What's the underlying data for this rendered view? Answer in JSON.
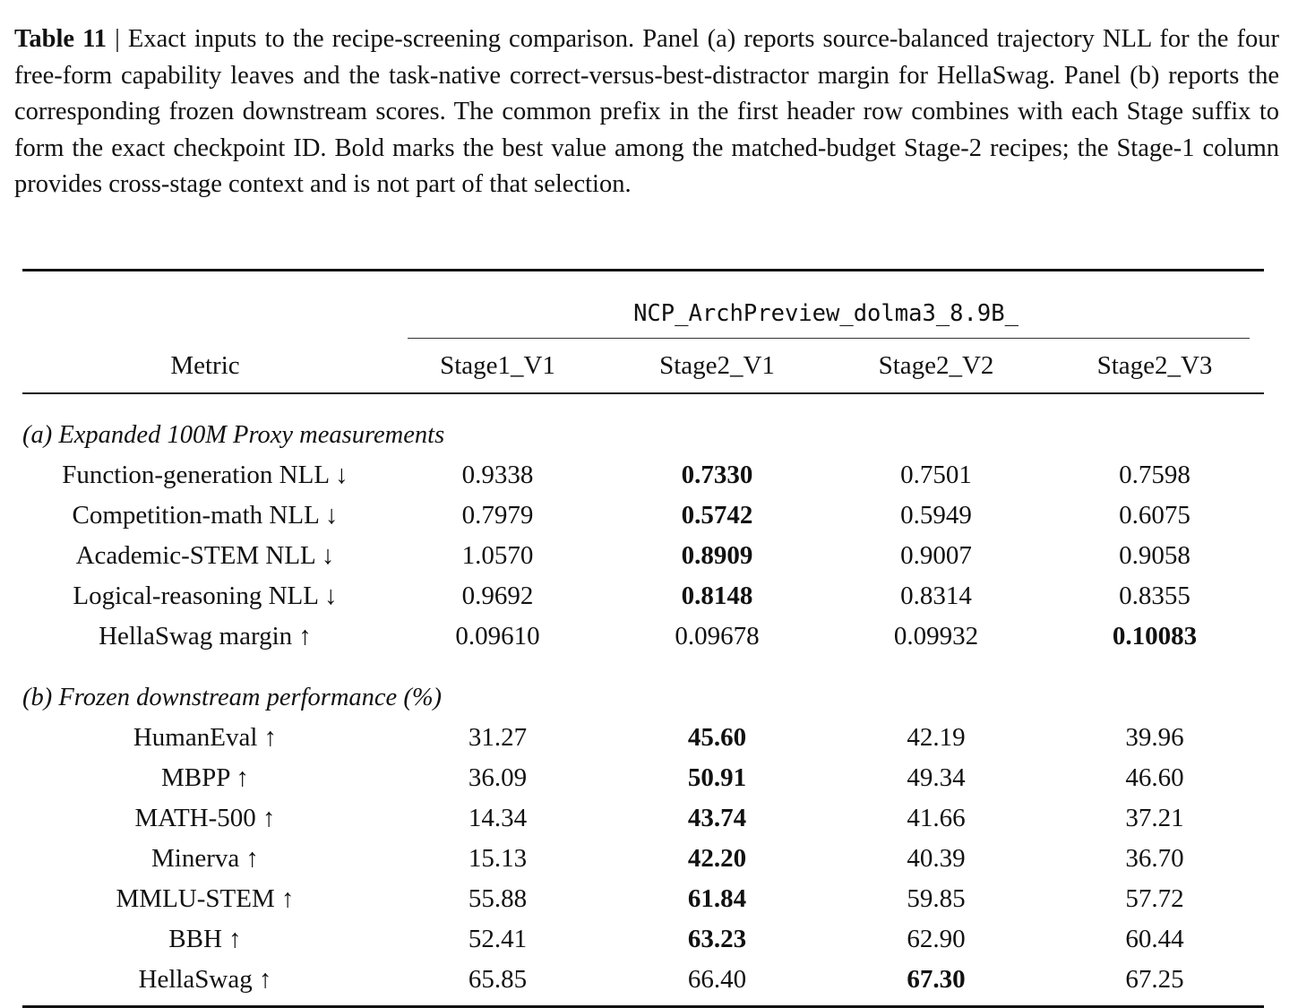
{
  "caption": {
    "label": "Table 11",
    "separator": " | ",
    "text": "Exact inputs to the recipe-screening comparison. Panel (a) reports source-balanced trajectory NLL for the four free-form capability leaves and the task-native correct-versus-best-distractor margin for HellaSwag. Panel (b) reports the corresponding frozen downstream scores. The common prefix in the first header row combines with each Stage suffix to form the exact checkpoint ID. Bold marks the best value among the matched-budget Stage-2 recipes; the Stage-1 column provides cross-stage context and is not part of that selection."
  },
  "table": {
    "prefix": "NCP_ArchPreview_dolma3_8.9B_",
    "metric_header": "Metric",
    "columns": [
      "Stage1_V1",
      "Stage2_V1",
      "Stage2_V2",
      "Stage2_V3"
    ],
    "panels": [
      {
        "title": "(a) Expanded 100M Proxy measurements",
        "rows": [
          {
            "metric": "Function-generation NLL ↓",
            "values": [
              "0.9338",
              "0.7330",
              "0.7501",
              "0.7598"
            ],
            "bold": 1
          },
          {
            "metric": "Competition-math NLL ↓",
            "values": [
              "0.7979",
              "0.5742",
              "0.5949",
              "0.6075"
            ],
            "bold": 1
          },
          {
            "metric": "Academic-STEM NLL ↓",
            "values": [
              "1.0570",
              "0.8909",
              "0.9007",
              "0.9058"
            ],
            "bold": 1
          },
          {
            "metric": "Logical-reasoning NLL ↓",
            "values": [
              "0.9692",
              "0.8148",
              "0.8314",
              "0.8355"
            ],
            "bold": 1
          },
          {
            "metric": "HellaSwag margin ↑",
            "values": [
              "0.09610",
              "0.09678",
              "0.09932",
              "0.10083"
            ],
            "bold": 3
          }
        ]
      },
      {
        "title": "(b) Frozen downstream performance (%)",
        "rows": [
          {
            "metric": "HumanEval ↑",
            "values": [
              "31.27",
              "45.60",
              "42.19",
              "39.96"
            ],
            "bold": 1
          },
          {
            "metric": "MBPP ↑",
            "values": [
              "36.09",
              "50.91",
              "49.34",
              "46.60"
            ],
            "bold": 1
          },
          {
            "metric": "MATH-500 ↑",
            "values": [
              "14.34",
              "43.74",
              "41.66",
              "37.21"
            ],
            "bold": 1
          },
          {
            "metric": "Minerva ↑",
            "values": [
              "15.13",
              "42.20",
              "40.39",
              "36.70"
            ],
            "bold": 1
          },
          {
            "metric": "MMLU-STEM ↑",
            "values": [
              "55.88",
              "61.84",
              "59.85",
              "57.72"
            ],
            "bold": 1
          },
          {
            "metric": "BBH ↑",
            "values": [
              "52.41",
              "63.23",
              "62.90",
              "60.44"
            ],
            "bold": 1
          },
          {
            "metric": "HellaSwag ↑",
            "values": [
              "65.85",
              "66.40",
              "67.30",
              "67.25"
            ],
            "bold": 2
          }
        ]
      }
    ]
  }
}
